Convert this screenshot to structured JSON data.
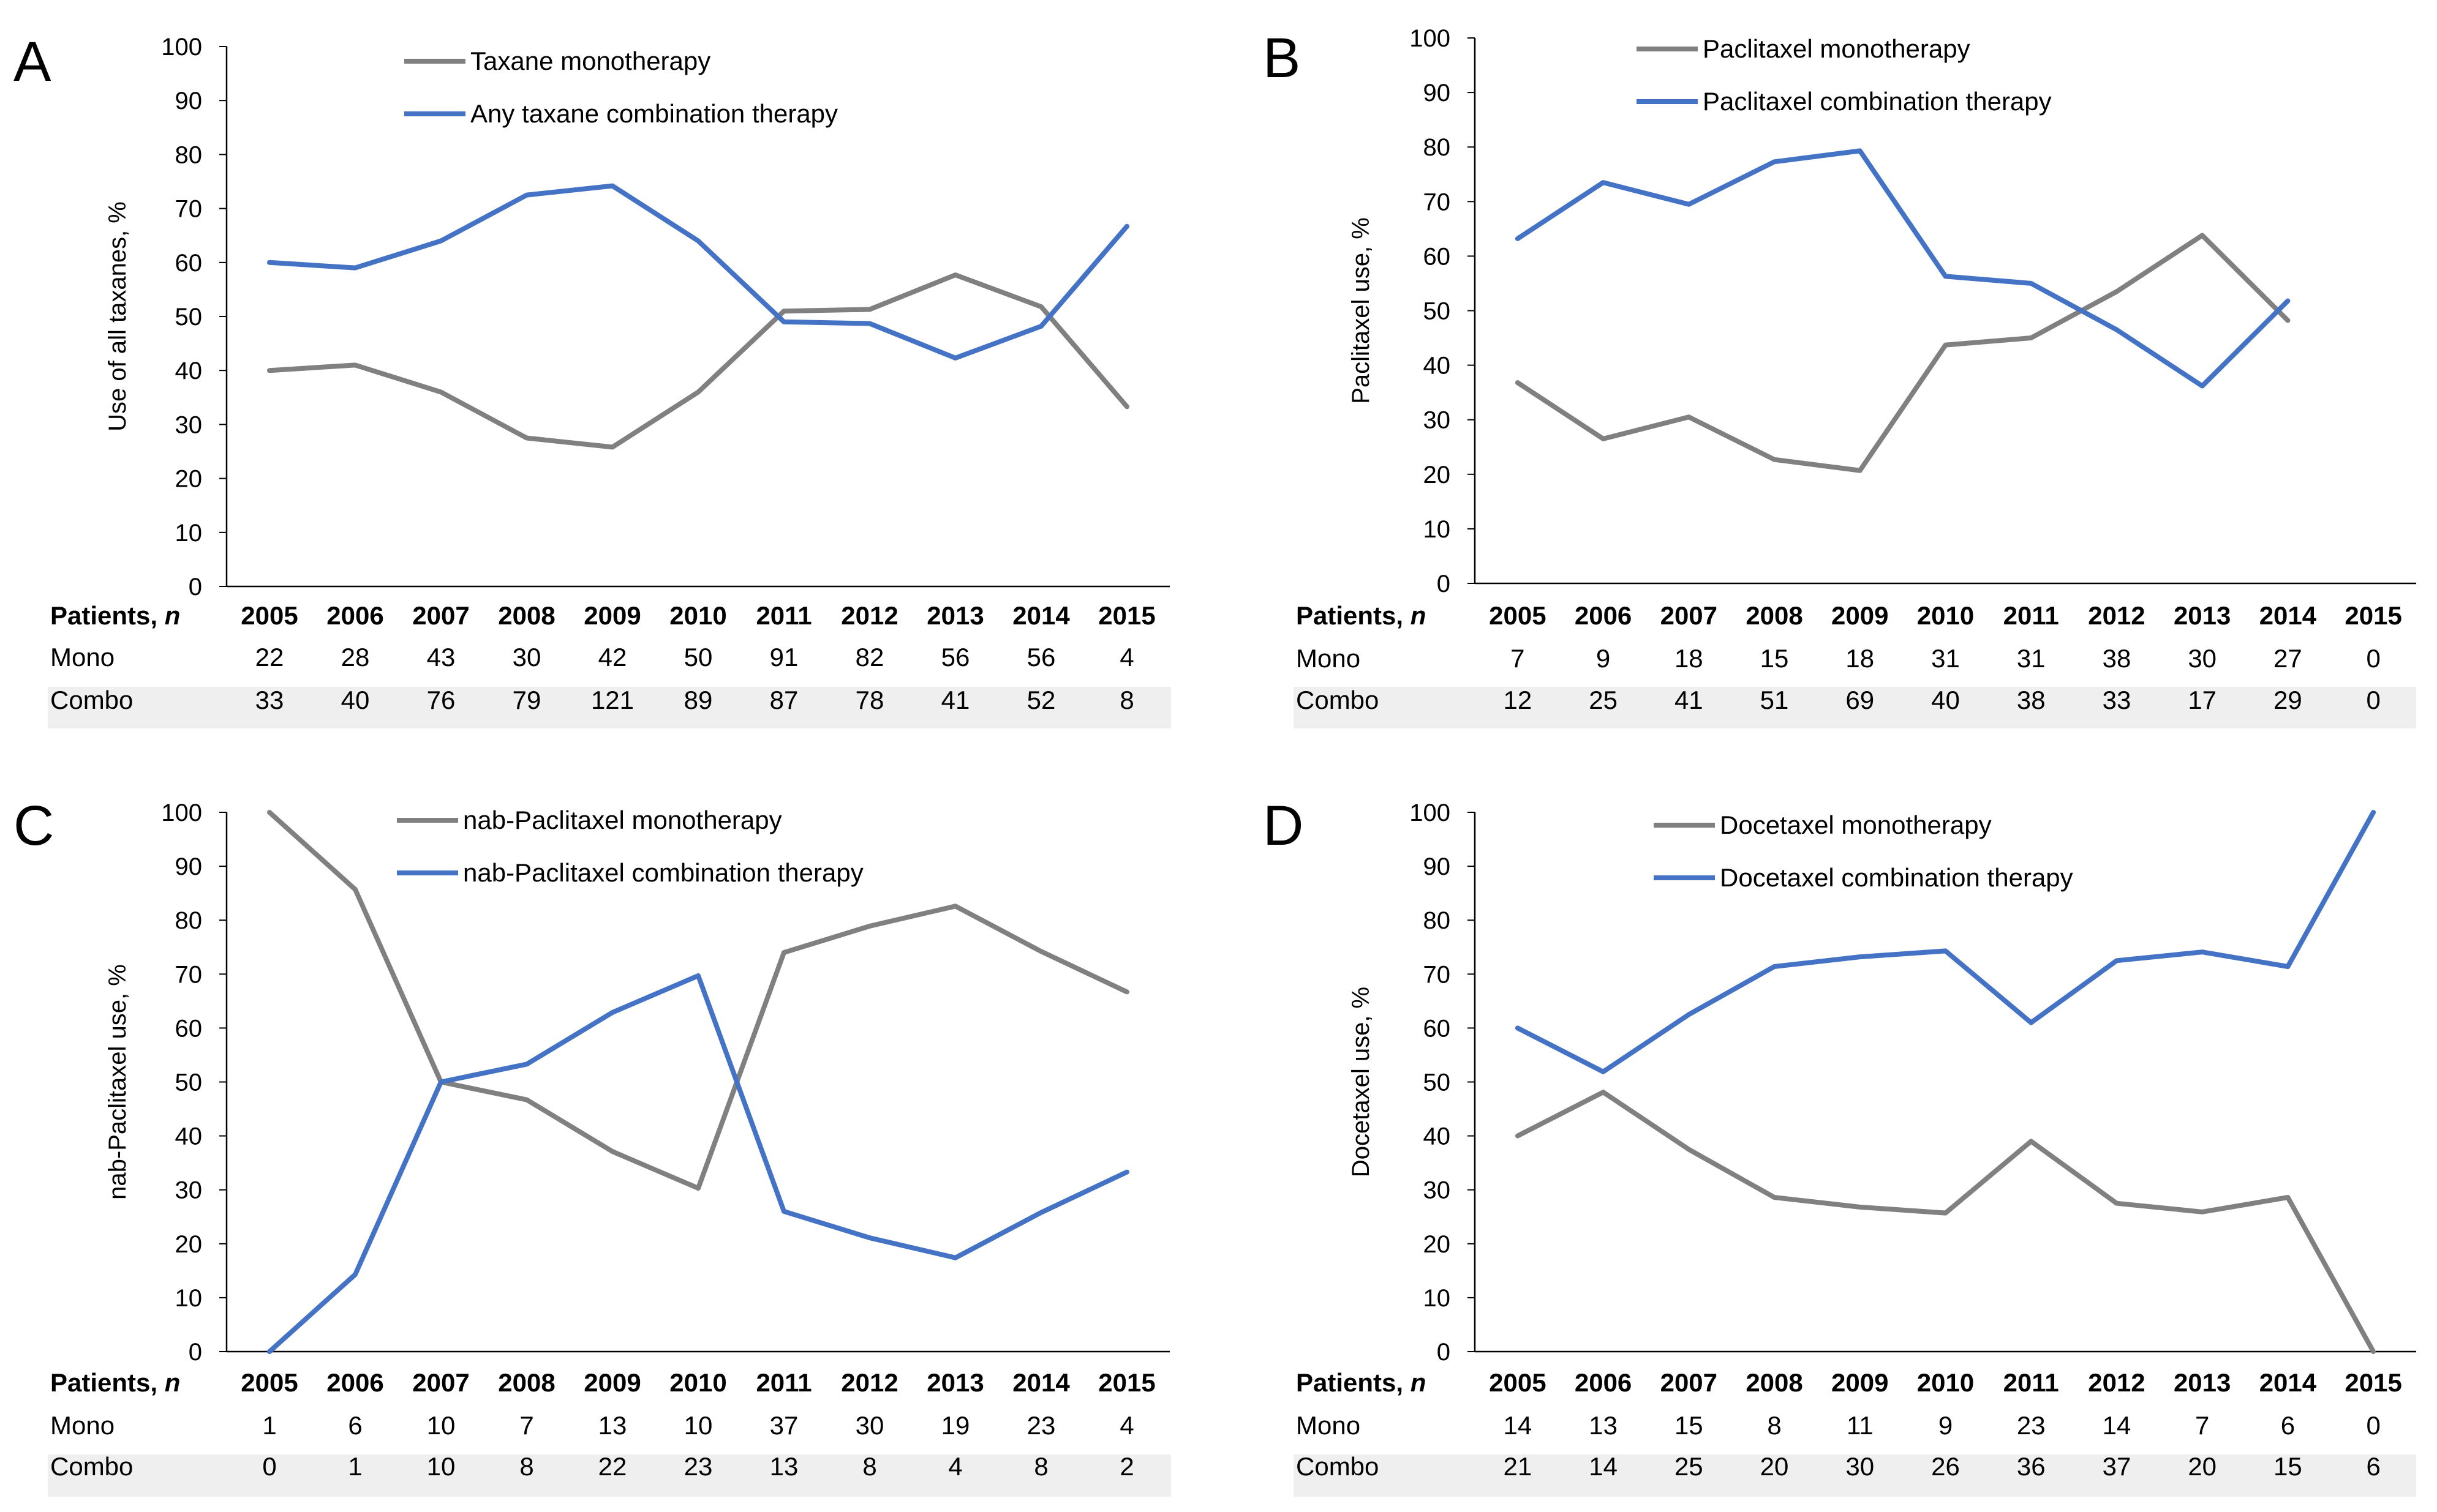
{
  "figure": {
    "panel_count": 4
  },
  "chart_data": [
    {
      "panel": "A",
      "type": "line",
      "ylabel": "Use of all taxanes, %",
      "ylim": [
        0,
        100
      ],
      "yticks": [
        0,
        10,
        20,
        30,
        40,
        50,
        60,
        70,
        80,
        90,
        100
      ],
      "categories": [
        "2005",
        "2006",
        "2007",
        "2008",
        "2009",
        "2010",
        "2011",
        "2012",
        "2013",
        "2014",
        "2015"
      ],
      "series": [
        {
          "name": "Taxane monotherapy",
          "color": "#808080",
          "values": [
            40,
            41,
            36,
            27.5,
            25.8,
            36,
            51,
            51.3,
            57.7,
            51.8,
            33.3
          ]
        },
        {
          "name": "Any taxane combination therapy",
          "color": "#4472C4",
          "values": [
            60,
            59,
            64,
            72.5,
            74.2,
            64,
            49,
            48.7,
            42.3,
            48.2,
            66.7
          ]
        }
      ],
      "table": {
        "header": "Patients,",
        "header_italic": "n",
        "rows": [
          {
            "label": "Mono",
            "values": [
              "22",
              "28",
              "43",
              "30",
              "42",
              "50",
              "91",
              "82",
              "56",
              "56",
              "4"
            ]
          },
          {
            "label": "Combo",
            "values": [
              "33",
              "40",
              "76",
              "79",
              "121",
              "89",
              "87",
              "78",
              "41",
              "52",
              "8"
            ]
          }
        ]
      }
    },
    {
      "panel": "B",
      "type": "line",
      "ylabel": "Paclitaxel use, %",
      "ylim": [
        0,
        100
      ],
      "yticks": [
        0,
        10,
        20,
        30,
        40,
        50,
        60,
        70,
        80,
        90,
        100
      ],
      "categories": [
        "2005",
        "2006",
        "2007",
        "2008",
        "2009",
        "2010",
        "2011",
        "2012",
        "2013",
        "2014",
        "2015"
      ],
      "series": [
        {
          "name": "Paclitaxel monotherapy",
          "color": "#808080",
          "values": [
            36.8,
            26.5,
            30.5,
            22.7,
            20.7,
            43.7,
            45,
            53.5,
            63.8,
            48.2,
            null
          ]
        },
        {
          "name": "Paclitaxel combination therapy",
          "color": "#4472C4",
          "values": [
            63.2,
            73.5,
            69.5,
            77.3,
            79.3,
            56.3,
            55,
            46.5,
            36.2,
            51.8,
            null
          ]
        }
      ],
      "table": {
        "header": "Patients,",
        "header_italic": "n",
        "rows": [
          {
            "label": "Mono",
            "values": [
              "7",
              "9",
              "18",
              "15",
              "18",
              "31",
              "31",
              "38",
              "30",
              "27",
              "0"
            ]
          },
          {
            "label": "Combo",
            "values": [
              "12",
              "25",
              "41",
              "51",
              "69",
              "40",
              "38",
              "33",
              "17",
              "29",
              "0"
            ]
          }
        ]
      }
    },
    {
      "panel": "C",
      "type": "line",
      "ylabel": "nab-Paclitaxel use, %",
      "ylim": [
        0,
        100
      ],
      "yticks": [
        0,
        10,
        20,
        30,
        40,
        50,
        60,
        70,
        80,
        90,
        100
      ],
      "categories": [
        "2005",
        "2006",
        "2007",
        "2008",
        "2009",
        "2010",
        "2011",
        "2012",
        "2013",
        "2014",
        "2015"
      ],
      "series": [
        {
          "name": "nab-Paclitaxel monotherapy",
          "color": "#808080",
          "values": [
            100,
            85.7,
            50,
            46.7,
            37.1,
            30.3,
            74,
            78.9,
            82.6,
            74.2,
            66.7
          ]
        },
        {
          "name": "nab-Paclitaxel combination therapy",
          "color": "#4472C4",
          "values": [
            0,
            14.3,
            50,
            53.3,
            62.9,
            69.7,
            26,
            21.1,
            17.4,
            25.8,
            33.3
          ]
        }
      ],
      "table": {
        "header": "Patients,",
        "header_italic": "n",
        "rows": [
          {
            "label": "Mono",
            "values": [
              "1",
              "6",
              "10",
              "7",
              "13",
              "10",
              "37",
              "30",
              "19",
              "23",
              "4"
            ]
          },
          {
            "label": "Combo",
            "values": [
              "0",
              "1",
              "10",
              "8",
              "22",
              "23",
              "13",
              "8",
              "4",
              "8",
              "2"
            ]
          }
        ]
      }
    },
    {
      "panel": "D",
      "type": "line",
      "ylabel": "Docetaxel use, %",
      "ylim": [
        0,
        100
      ],
      "yticks": [
        0,
        10,
        20,
        30,
        40,
        50,
        60,
        70,
        80,
        90,
        100
      ],
      "categories": [
        "2005",
        "2006",
        "2007",
        "2008",
        "2009",
        "2010",
        "2011",
        "2012",
        "2013",
        "2014",
        "2015"
      ],
      "series": [
        {
          "name": "Docetaxel monotherapy",
          "color": "#808080",
          "values": [
            40,
            48.1,
            37.5,
            28.6,
            26.8,
            25.7,
            39,
            27.5,
            25.9,
            28.6,
            0
          ]
        },
        {
          "name": "Docetaxel combination therapy",
          "color": "#4472C4",
          "values": [
            60,
            51.9,
            62.5,
            71.4,
            73.2,
            74.3,
            61,
            72.5,
            74.1,
            71.4,
            100
          ]
        }
      ],
      "table": {
        "header": "Patients,",
        "header_italic": "n",
        "rows": [
          {
            "label": "Mono",
            "values": [
              "14",
              "13",
              "15",
              "8",
              "11",
              "9",
              "23",
              "14",
              "7",
              "6",
              "0"
            ]
          },
          {
            "label": "Combo",
            "values": [
              "21",
              "14",
              "25",
              "20",
              "30",
              "26",
              "36",
              "37",
              "20",
              "15",
              "6"
            ]
          }
        ]
      }
    }
  ]
}
